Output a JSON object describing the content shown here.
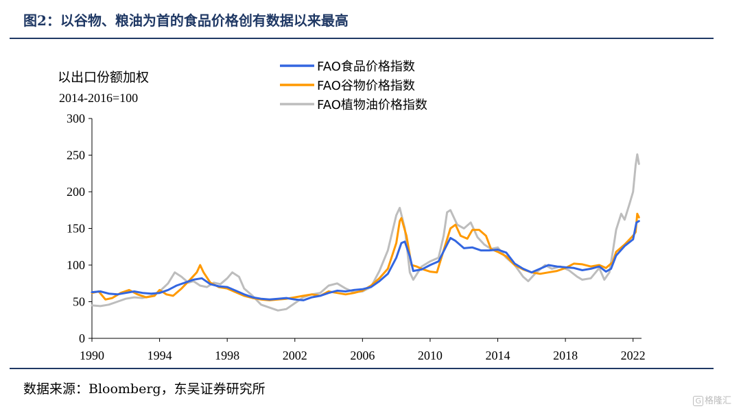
{
  "figure": {
    "title": "图2：以谷物、粮油为首的食品价格创有数据以来最高",
    "source": "数据来源：Bloomberg，东吴证券研究所",
    "watermark": "格隆汇"
  },
  "chart_data": {
    "type": "line",
    "unit_label": "以出口份额加权",
    "unit_sub": "2014-2016=100",
    "ylim": [
      0,
      300
    ],
    "yticks": [
      0,
      50,
      100,
      150,
      200,
      250,
      300
    ],
    "xlim": [
      1990,
      2022.5
    ],
    "xticks": [
      1990,
      1994,
      1998,
      2002,
      2006,
      2010,
      2014,
      2018,
      2022
    ],
    "legend_position": "top-center",
    "grid": false,
    "series": [
      {
        "name": "FAO食品价格指数",
        "color": "#3366e0",
        "points": [
          [
            1990.0,
            63
          ],
          [
            1990.5,
            64
          ],
          [
            1991.0,
            61
          ],
          [
            1991.5,
            60
          ],
          [
            1992.0,
            62
          ],
          [
            1992.5,
            64
          ],
          [
            1993.0,
            62
          ],
          [
            1993.5,
            61
          ],
          [
            1994.0,
            62
          ],
          [
            1994.5,
            66
          ],
          [
            1995.0,
            72
          ],
          [
            1995.5,
            76
          ],
          [
            1996.0,
            80
          ],
          [
            1996.5,
            82
          ],
          [
            1997.0,
            74
          ],
          [
            1997.5,
            71
          ],
          [
            1998.0,
            70
          ],
          [
            1998.5,
            65
          ],
          [
            1999.0,
            60
          ],
          [
            1999.5,
            56
          ],
          [
            2000.0,
            54
          ],
          [
            2000.5,
            53
          ],
          [
            2001.0,
            54
          ],
          [
            2001.5,
            55
          ],
          [
            2002.0,
            53
          ],
          [
            2002.5,
            52
          ],
          [
            2003.0,
            56
          ],
          [
            2003.5,
            58
          ],
          [
            2004.0,
            62
          ],
          [
            2004.5,
            65
          ],
          [
            2005.0,
            64
          ],
          [
            2005.5,
            66
          ],
          [
            2006.0,
            67
          ],
          [
            2006.5,
            70
          ],
          [
            2007.0,
            78
          ],
          [
            2007.5,
            88
          ],
          [
            2008.0,
            110
          ],
          [
            2008.3,
            130
          ],
          [
            2008.5,
            132
          ],
          [
            2008.8,
            112
          ],
          [
            2009.0,
            92
          ],
          [
            2009.5,
            94
          ],
          [
            2010.0,
            100
          ],
          [
            2010.5,
            105
          ],
          [
            2011.0,
            128
          ],
          [
            2011.2,
            137
          ],
          [
            2011.5,
            133
          ],
          [
            2012.0,
            123
          ],
          [
            2012.5,
            124
          ],
          [
            2013.0,
            120
          ],
          [
            2013.5,
            120
          ],
          [
            2014.0,
            121
          ],
          [
            2014.5,
            117
          ],
          [
            2015.0,
            102
          ],
          [
            2015.5,
            95
          ],
          [
            2016.0,
            90
          ],
          [
            2016.5,
            95
          ],
          [
            2017.0,
            100
          ],
          [
            2017.5,
            98
          ],
          [
            2018.0,
            97
          ],
          [
            2018.5,
            96
          ],
          [
            2019.0,
            93
          ],
          [
            2019.5,
            95
          ],
          [
            2020.0,
            98
          ],
          [
            2020.4,
            91
          ],
          [
            2020.7,
            95
          ],
          [
            2021.0,
            113
          ],
          [
            2021.5,
            126
          ],
          [
            2022.0,
            135
          ],
          [
            2022.2,
            158
          ],
          [
            2022.35,
            160
          ]
        ]
      },
      {
        "name": "FAO谷物价格指数",
        "color": "#ff9900",
        "points": [
          [
            1990.0,
            62
          ],
          [
            1990.4,
            64
          ],
          [
            1990.8,
            53
          ],
          [
            1991.2,
            55
          ],
          [
            1991.7,
            62
          ],
          [
            1992.2,
            66
          ],
          [
            1992.7,
            60
          ],
          [
            1993.2,
            56
          ],
          [
            1993.7,
            58
          ],
          [
            1994.0,
            66
          ],
          [
            1994.4,
            60
          ],
          [
            1994.8,
            58
          ],
          [
            1995.3,
            68
          ],
          [
            1995.8,
            80
          ],
          [
            1996.2,
            90
          ],
          [
            1996.4,
            100
          ],
          [
            1996.6,
            90
          ],
          [
            1997.0,
            76
          ],
          [
            1997.5,
            70
          ],
          [
            1998.0,
            68
          ],
          [
            1998.5,
            63
          ],
          [
            1999.0,
            58
          ],
          [
            1999.5,
            55
          ],
          [
            2000.0,
            53
          ],
          [
            2000.5,
            52
          ],
          [
            2001.0,
            53
          ],
          [
            2001.5,
            54
          ],
          [
            2002.0,
            56
          ],
          [
            2002.5,
            58
          ],
          [
            2003.0,
            60
          ],
          [
            2003.5,
            58
          ],
          [
            2004.0,
            64
          ],
          [
            2004.5,
            62
          ],
          [
            2005.0,
            60
          ],
          [
            2005.5,
            62
          ],
          [
            2006.0,
            65
          ],
          [
            2006.5,
            72
          ],
          [
            2007.0,
            82
          ],
          [
            2007.5,
            95
          ],
          [
            2008.0,
            130
          ],
          [
            2008.2,
            160
          ],
          [
            2008.3,
            164
          ],
          [
            2008.6,
            140
          ],
          [
            2008.9,
            100
          ],
          [
            2009.2,
            98
          ],
          [
            2009.6,
            94
          ],
          [
            2010.0,
            91
          ],
          [
            2010.4,
            90
          ],
          [
            2010.8,
            120
          ],
          [
            2011.2,
            150
          ],
          [
            2011.5,
            155
          ],
          [
            2011.8,
            140
          ],
          [
            2012.2,
            136
          ],
          [
            2012.5,
            148
          ],
          [
            2012.9,
            148
          ],
          [
            2013.3,
            140
          ],
          [
            2013.6,
            122
          ],
          [
            2014.0,
            118
          ],
          [
            2014.5,
            112
          ],
          [
            2015.0,
            100
          ],
          [
            2015.5,
            94
          ],
          [
            2016.0,
            90
          ],
          [
            2016.5,
            88
          ],
          [
            2017.0,
            90
          ],
          [
            2017.5,
            92
          ],
          [
            2018.0,
            96
          ],
          [
            2018.5,
            102
          ],
          [
            2019.0,
            101
          ],
          [
            2019.5,
            98
          ],
          [
            2020.0,
            100
          ],
          [
            2020.4,
            96
          ],
          [
            2020.8,
            104
          ],
          [
            2021.0,
            118
          ],
          [
            2021.5,
            128
          ],
          [
            2022.0,
            140
          ],
          [
            2022.15,
            145
          ],
          [
            2022.25,
            170
          ],
          [
            2022.35,
            165
          ]
        ]
      },
      {
        "name": "FAO植物油价格指数",
        "color": "#bdbdbd",
        "points": [
          [
            1990.0,
            45
          ],
          [
            1990.5,
            44
          ],
          [
            1991.0,
            46
          ],
          [
            1991.5,
            50
          ],
          [
            1992.0,
            54
          ],
          [
            1992.5,
            56
          ],
          [
            1993.0,
            55
          ],
          [
            1993.5,
            58
          ],
          [
            1994.0,
            64
          ],
          [
            1994.5,
            75
          ],
          [
            1994.9,
            90
          ],
          [
            1995.3,
            84
          ],
          [
            1995.7,
            76
          ],
          [
            1996.0,
            78
          ],
          [
            1996.4,
            72
          ],
          [
            1996.8,
            70
          ],
          [
            1997.2,
            76
          ],
          [
            1997.6,
            74
          ],
          [
            1998.0,
            82
          ],
          [
            1998.3,
            90
          ],
          [
            1998.7,
            84
          ],
          [
            1999.0,
            68
          ],
          [
            1999.5,
            58
          ],
          [
            2000.0,
            46
          ],
          [
            2000.5,
            42
          ],
          [
            2001.0,
            38
          ],
          [
            2001.5,
            40
          ],
          [
            2002.0,
            48
          ],
          [
            2002.5,
            56
          ],
          [
            2003.0,
            60
          ],
          [
            2003.5,
            62
          ],
          [
            2004.0,
            72
          ],
          [
            2004.5,
            75
          ],
          [
            2005.0,
            68
          ],
          [
            2005.5,
            63
          ],
          [
            2006.0,
            64
          ],
          [
            2006.5,
            70
          ],
          [
            2007.0,
            92
          ],
          [
            2007.5,
            120
          ],
          [
            2008.0,
            168
          ],
          [
            2008.2,
            178
          ],
          [
            2008.5,
            150
          ],
          [
            2008.8,
            90
          ],
          [
            2009.0,
            80
          ],
          [
            2009.5,
            98
          ],
          [
            2010.0,
            105
          ],
          [
            2010.5,
            110
          ],
          [
            2010.8,
            140
          ],
          [
            2011.0,
            172
          ],
          [
            2011.2,
            175
          ],
          [
            2011.6,
            155
          ],
          [
            2012.0,
            150
          ],
          [
            2012.4,
            158
          ],
          [
            2012.8,
            138
          ],
          [
            2013.2,
            128
          ],
          [
            2013.6,
            122
          ],
          [
            2014.0,
            124
          ],
          [
            2014.5,
            110
          ],
          [
            2015.0,
            100
          ],
          [
            2015.5,
            84
          ],
          [
            2015.8,
            78
          ],
          [
            2016.2,
            88
          ],
          [
            2016.8,
            100
          ],
          [
            2017.2,
            95
          ],
          [
            2017.7,
            98
          ],
          [
            2018.2,
            93
          ],
          [
            2018.7,
            84
          ],
          [
            2019.0,
            80
          ],
          [
            2019.5,
            82
          ],
          [
            2020.0,
            96
          ],
          [
            2020.3,
            80
          ],
          [
            2020.6,
            90
          ],
          [
            2020.8,
            118
          ],
          [
            2021.0,
            148
          ],
          [
            2021.3,
            170
          ],
          [
            2021.5,
            162
          ],
          [
            2021.8,
            184
          ],
          [
            2022.0,
            200
          ],
          [
            2022.15,
            236
          ],
          [
            2022.25,
            251
          ],
          [
            2022.35,
            238
          ]
        ]
      }
    ]
  }
}
